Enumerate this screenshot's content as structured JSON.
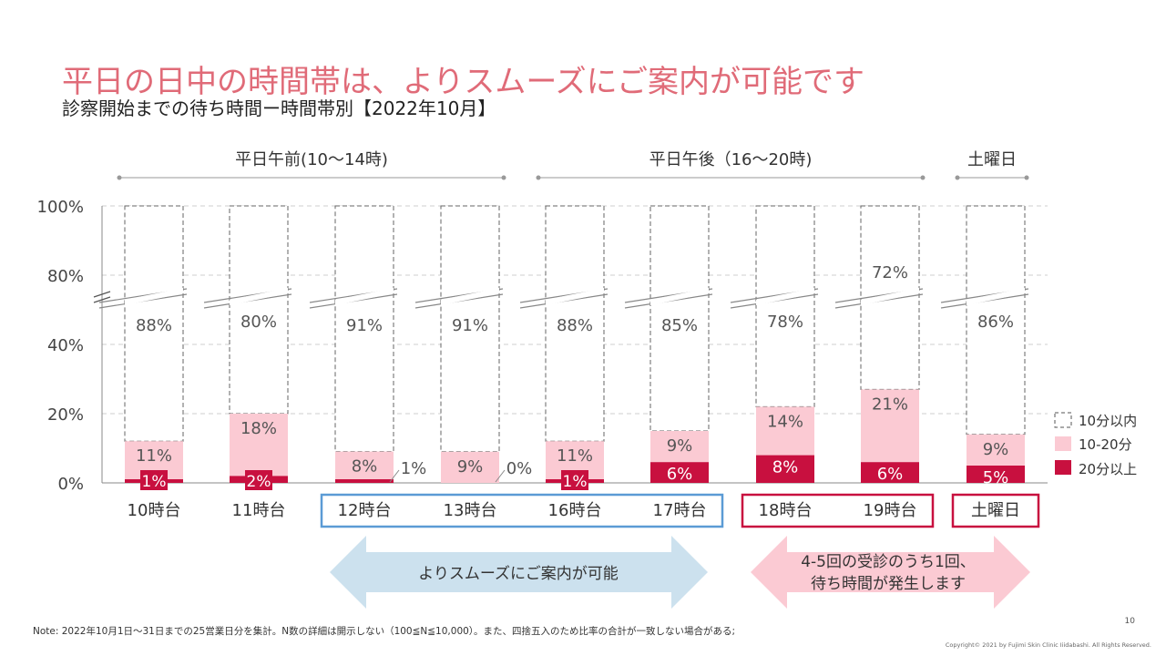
{
  "header": {
    "title": "平日の日中の時間帯は、よりスムーズにご案内が可能です",
    "subtitle": "診察開始までの待ち時間ー時間帯別【2022年10月】"
  },
  "groups": [
    {
      "label": "平日午前(10～14時)"
    },
    {
      "label": "平日午後（16～20時)"
    },
    {
      "label": "土曜日"
    }
  ],
  "legend": [
    {
      "label": "10分以内",
      "style": "dashed"
    },
    {
      "label": "10-20分",
      "color": "#fbcad3"
    },
    {
      "label": "20分以上",
      "color": "#c8103f"
    }
  ],
  "arrows": {
    "left": "よりスムーズにご案内が可能",
    "right_line1": "4-5回の受診のうち1回、",
    "right_line2": "待ち時間が発生します"
  },
  "footer": {
    "note": "Note: 2022年10月1日～31日までの25営業日分を集計。N数の詳細は開示しない（100≦N≦10,000）。また、四捨五入のため比率の合計が一致しない場合がある;",
    "page": "10",
    "copyright": "Copyright© 2021 by Fujimi Skin Clinic Iiidabashi. All Rights Reserved."
  },
  "colors": {
    "accent": "#e06b78",
    "dark_red": "#c8103f",
    "light_pink": "#fbcad3",
    "blue_box": "#5b9bd5",
    "blue_arrow": "#cce1ee",
    "pink_arrow": "#fbcad3"
  },
  "chart_data": {
    "type": "bar",
    "stacked": true,
    "y_tick_labels": [
      "0%",
      "20%",
      "40%",
      "80%",
      "100%"
    ],
    "axis_break": true,
    "categories": [
      "10時台",
      "11時台",
      "12時台",
      "13時台",
      "16時台",
      "17時台",
      "18時台",
      "19時台",
      "土曜日"
    ],
    "series": [
      {
        "name": "20分以上",
        "values": [
          1,
          2,
          1,
          0,
          1,
          6,
          8,
          6,
          5
        ],
        "labels": [
          "1%",
          "2%",
          "1%",
          "0%",
          "1%",
          "6%",
          "8%",
          "6%",
          "5%"
        ]
      },
      {
        "name": "10-20分",
        "values": [
          11,
          18,
          8,
          9,
          11,
          9,
          14,
          21,
          9
        ],
        "labels": [
          "11%",
          "18%",
          "8%",
          "9%",
          "11%",
          "9%",
          "14%",
          "21%",
          "9%"
        ]
      },
      {
        "name": "10分以内",
        "values": [
          88,
          80,
          91,
          91,
          88,
          85,
          78,
          72,
          86
        ],
        "labels": [
          "88%",
          "80%",
          "91%",
          "91%",
          "88%",
          "85%",
          "78%",
          "72%",
          "86%"
        ]
      }
    ],
    "category_boxes": [
      {
        "from": 2,
        "to": 5,
        "style": "blue"
      },
      {
        "from": 6,
        "to": 7,
        "style": "red"
      },
      {
        "from": 8,
        "to": 8,
        "style": "red"
      }
    ]
  }
}
